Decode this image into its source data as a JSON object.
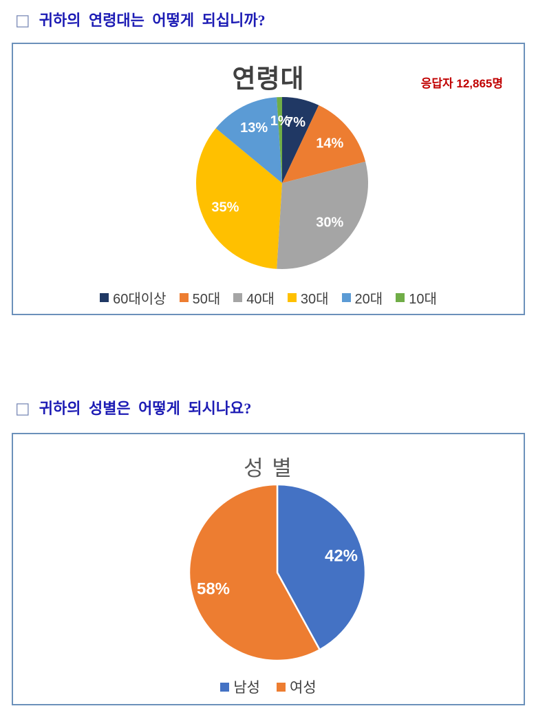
{
  "questions": [
    {
      "bullet": "□",
      "text": "귀하의 연령대는 어떻게 되십니까?"
    },
    {
      "bullet": "□",
      "text": "귀하의 성별은 어떻게 되시나요?"
    }
  ],
  "chart_data": [
    {
      "type": "pie",
      "title": "연령대",
      "annotation": "응답자 12,865명",
      "categories": [
        "60대이상",
        "50대",
        "40대",
        "30대",
        "20대",
        "10대"
      ],
      "values": [
        7,
        14,
        30,
        35,
        13,
        1
      ],
      "data_labels": [
        "7%",
        "14%",
        "30%",
        "35%",
        "13%",
        "1%"
      ],
      "colors": [
        "#203864",
        "#ED7D31",
        "#A5A5A5",
        "#FFC000",
        "#5B9BD5",
        "#70AD47"
      ],
      "start_angle_deg": 0,
      "direction": "clockwise",
      "legend_position": "bottom",
      "label_color": "#FFFFFF",
      "title_color": "#404040",
      "annotation_color": "#C00000"
    },
    {
      "type": "pie",
      "title": "성 별",
      "categories": [
        "남성",
        "여성"
      ],
      "values": [
        42,
        58
      ],
      "data_labels": [
        "42%",
        "58%"
      ],
      "colors": [
        "#4472C4",
        "#ED7D31"
      ],
      "start_angle_deg": 0,
      "direction": "clockwise",
      "legend_position": "bottom",
      "label_color": "#FFFFFF",
      "slice_separator_color": "#FFFFFF",
      "title_color": "#595959"
    }
  ],
  "styles": {
    "panel_border": "#6B90BA",
    "heading_color": "#1C1BB4"
  }
}
